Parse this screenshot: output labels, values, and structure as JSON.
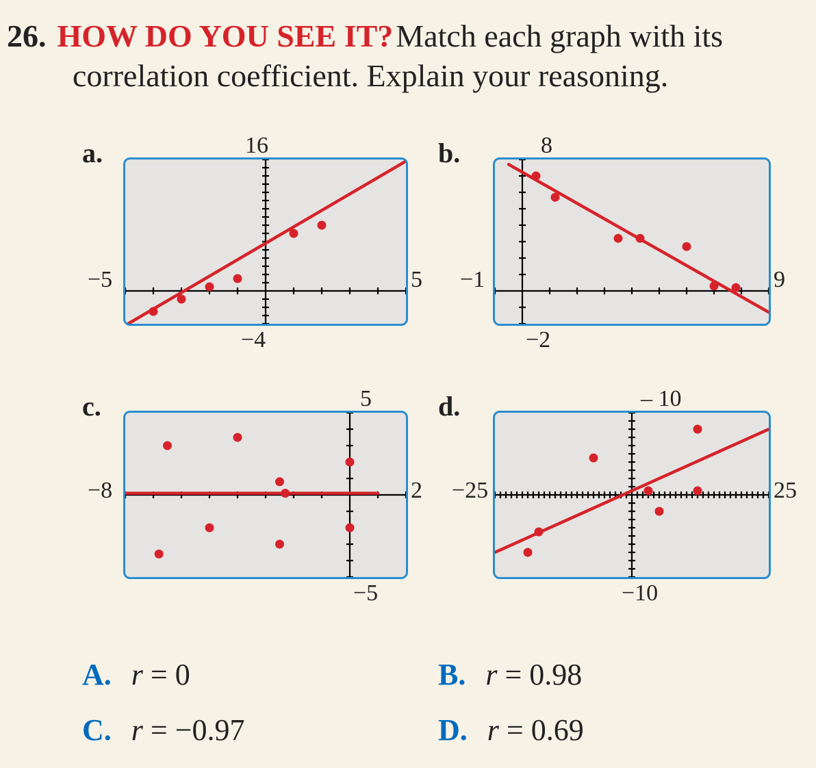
{
  "question": {
    "number": "26.",
    "red": "HOW DO YOU SEE IT?",
    "text1": " Match each graph with its",
    "text2": "correlation coefficient. Explain your reasoning."
  },
  "graphs": {
    "a": {
      "label": "a.",
      "xmin": -5,
      "xmax": 5,
      "ymin": -4,
      "ymax": 16,
      "xmin_label": "−5",
      "xmax_label": "5",
      "ymin_label": "−4",
      "ymax_label": "16",
      "points": [
        [
          -4,
          -2.5
        ],
        [
          -3,
          -1
        ],
        [
          -2,
          0.5
        ],
        [
          -1,
          1.5
        ],
        [
          1,
          7
        ],
        [
          2,
          8
        ]
      ],
      "line": [
        [
          -5,
          -4.2
        ],
        [
          5,
          15.8
        ]
      ],
      "point_color": "#d6232a",
      "line_color": "#d6232a",
      "axis_color": "#000000",
      "bg": "#e5e4e2"
    },
    "b": {
      "label": "b.",
      "xmin": -1,
      "xmax": 9,
      "ymin": -2,
      "ymax": 8,
      "xmin_label": "−1",
      "xmax_label": "9",
      "ymin_label": "−2",
      "ymax_label": "8",
      "points": [
        [
          0.5,
          7
        ],
        [
          1.2,
          5.7
        ],
        [
          3.5,
          3.2
        ],
        [
          4.3,
          3.2
        ],
        [
          6,
          2.7
        ],
        [
          7,
          0.3
        ],
        [
          7.8,
          0.2
        ]
      ],
      "line": [
        [
          -0.5,
          7.7
        ],
        [
          9,
          -1.3
        ]
      ],
      "point_color": "#d6232a",
      "line_color": "#d6232a",
      "axis_color": "#000000",
      "bg": "#e5e4e2"
    },
    "c": {
      "label": "c.",
      "xmin": -8,
      "xmax": 2,
      "ymin": -5,
      "ymax": 5,
      "xmin_label": "−8",
      "xmax_label": "2",
      "ymin_label": "−5",
      "ymax_label": "5",
      "points": [
        [
          -6.5,
          3
        ],
        [
          -4,
          3.5
        ],
        [
          -5,
          -2
        ],
        [
          -6.8,
          -3.6
        ],
        [
          -2.5,
          0.8
        ],
        [
          -2.3,
          0.1
        ],
        [
          -2.5,
          -3
        ],
        [
          0,
          -2
        ],
        [
          0,
          2
        ]
      ],
      "line": [
        [
          -8,
          0.1
        ],
        [
          1,
          0.1
        ]
      ],
      "point_color": "#d6232a",
      "line_color": "#d6232a",
      "axis_color": "#000000",
      "bg": "#e5e4e2"
    },
    "d": {
      "label": "d.",
      "xmin": -25,
      "xmax": 25,
      "ymin": -10,
      "ymax": 10,
      "xmin_label": "−25",
      "xmax_label": "25",
      "ymin_label": "−10",
      "ymax_label": "– 10",
      "points": [
        [
          -19,
          -7
        ],
        [
          -17,
          -4.5
        ],
        [
          -7,
          4.5
        ],
        [
          5,
          -2
        ],
        [
          3,
          0.5
        ],
        [
          12,
          0.5
        ],
        [
          12,
          8
        ]
      ],
      "line": [
        [
          -25,
          -7
        ],
        [
          25,
          8
        ]
      ],
      "point_color": "#d6232a",
      "line_color": "#d6232a",
      "axis_color": "#000000",
      "bg": "#e5e4e2"
    }
  },
  "answers": {
    "A": {
      "label": "A.",
      "expr": "r = 0"
    },
    "B": {
      "label": "B.",
      "expr": "r = 0.98"
    },
    "C": {
      "label": "C.",
      "expr": "r = −0.97"
    },
    "D": {
      "label": "D.",
      "expr": "r = 0.69"
    }
  },
  "style": {
    "panel_border": "#2a8ccf"
  }
}
